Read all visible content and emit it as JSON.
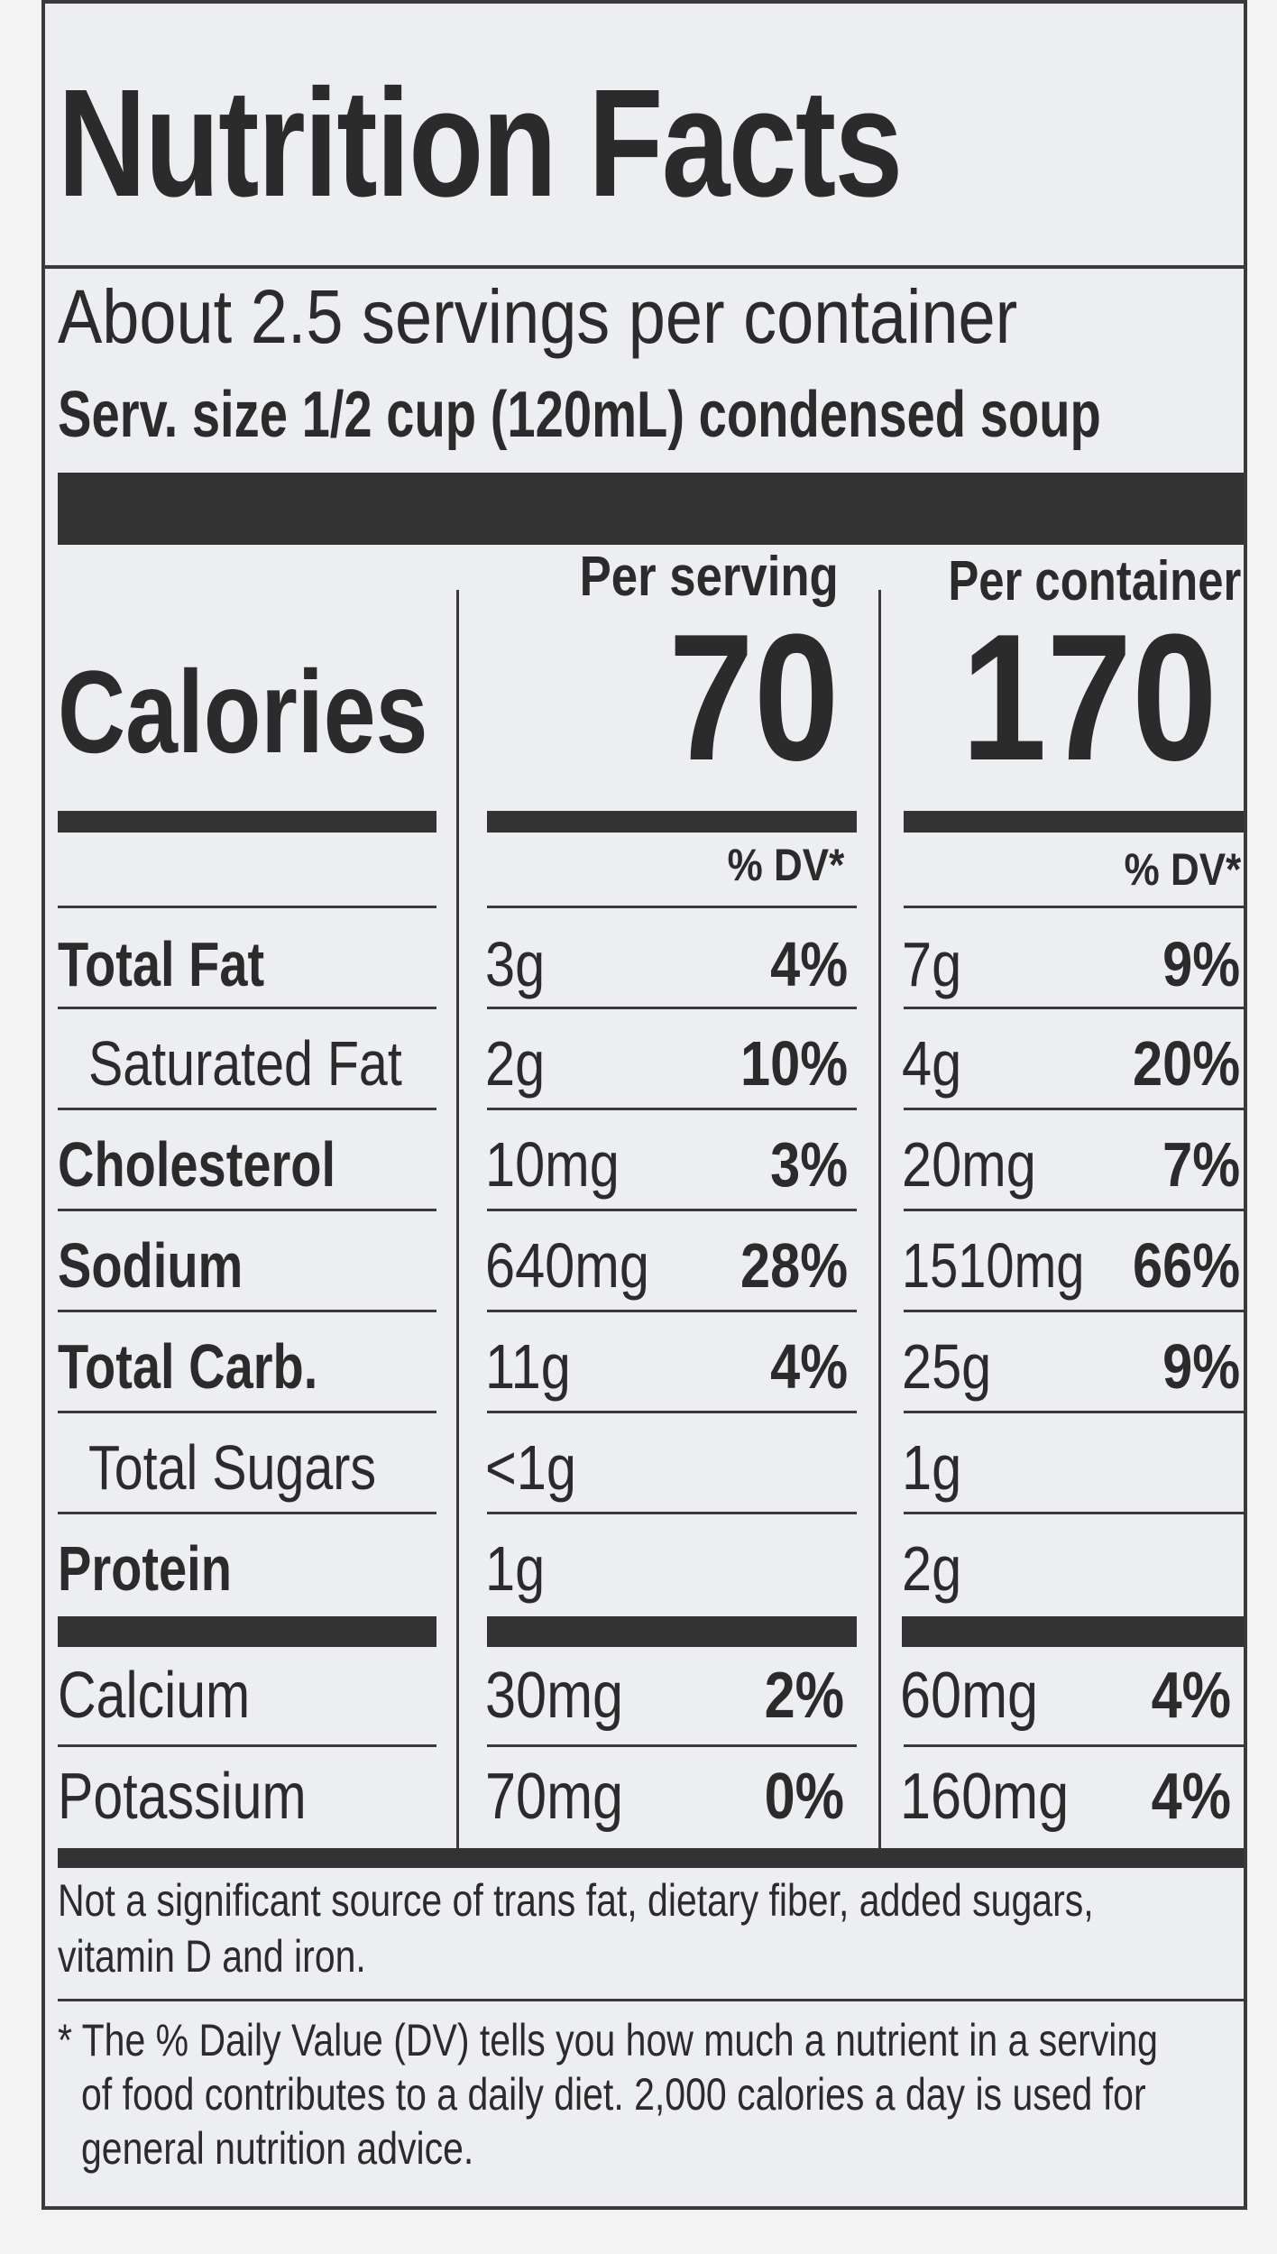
{
  "title": "Nutrition Facts",
  "servings_per_container": "About 2.5 servings per container",
  "serving_size": "Serv. size 1/2 cup (120mL) condensed soup",
  "columns": {
    "per_serving": {
      "header": "Per serving",
      "calories": "70",
      "dv_header": "% DV*"
    },
    "per_container": {
      "header": "Per container",
      "calories": "170",
      "dv_header": "% DV*"
    }
  },
  "calories_label": "Calories",
  "nutrients": [
    {
      "name": "Total Fat",
      "bold": true,
      "serving_amount": "3g",
      "serving_dv": "4%",
      "container_amount": "7g",
      "container_dv": "9%"
    },
    {
      "name": "Saturated Fat",
      "bold": false,
      "serving_amount": "2g",
      "serving_dv": "10%",
      "container_amount": "4g",
      "container_dv": "20%"
    },
    {
      "name": "Cholesterol",
      "bold": true,
      "serving_amount": "10mg",
      "serving_dv": "3%",
      "container_amount": "20mg",
      "container_dv": "7%"
    },
    {
      "name": "Sodium",
      "bold": true,
      "serving_amount": "640mg",
      "serving_dv": "28%",
      "container_amount": "1510mg",
      "container_dv": "66%"
    },
    {
      "name": "Total Carb.",
      "bold": true,
      "serving_amount": "11g",
      "serving_dv": "4%",
      "container_amount": "25g",
      "container_dv": "9%"
    },
    {
      "name": "Total Sugars",
      "bold": false,
      "serving_amount": "<1g",
      "serving_dv": "",
      "container_amount": "1g",
      "container_dv": ""
    },
    {
      "name": "Protein",
      "bold": true,
      "serving_amount": "1g",
      "serving_dv": "",
      "container_amount": "2g",
      "container_dv": ""
    }
  ],
  "minerals": [
    {
      "name": "Calcium",
      "serving_amount": "30mg",
      "serving_dv": "2%",
      "container_amount": "60mg",
      "container_dv": "4%"
    },
    {
      "name": "Potassium",
      "serving_amount": "70mg",
      "serving_dv": "0%",
      "container_amount": "160mg",
      "container_dv": "4%"
    }
  ],
  "footnote_1_line1": "Not a significant source of trans fat, dietary fiber, added sugars,",
  "footnote_1_line2": "vitamin D and iron.",
  "footnote_2_line1": "* The % Daily Value (DV) tells you how much a nutrient in a serving",
  "footnote_2_line2": "of food contributes to a daily diet. 2,000 calories a day is used for",
  "footnote_2_line3": "general nutrition advice."
}
